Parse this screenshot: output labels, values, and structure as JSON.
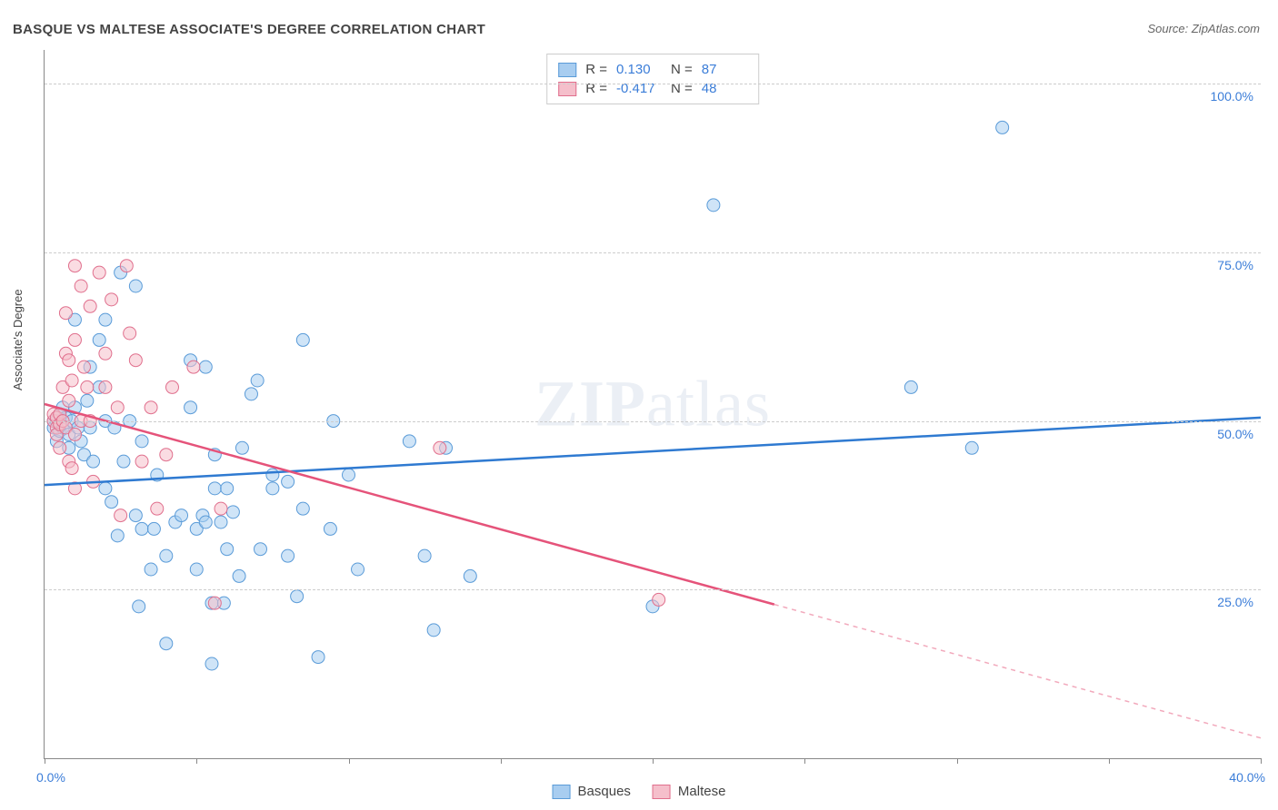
{
  "title": "BASQUE VS MALTESE ASSOCIATE'S DEGREE CORRELATION CHART",
  "source": "Source: ZipAtlas.com",
  "ylabel": "Associate's Degree",
  "watermark": {
    "bold": "ZIP",
    "rest": "atlas"
  },
  "chart": {
    "type": "scatter",
    "background_color": "#ffffff",
    "grid_color": "#cccccc",
    "grid_dash": "4,4",
    "axis_color": "#888888",
    "xlim": [
      0,
      40
    ],
    "ylim": [
      0,
      105
    ],
    "x_ticks": [
      0,
      5,
      10,
      15,
      20,
      25,
      30,
      35,
      40
    ],
    "x_tick_labels": {
      "0": "0.0%",
      "40": "40.0%"
    },
    "y_gridlines": [
      25,
      50,
      75,
      100
    ],
    "y_tick_labels": {
      "25": "25.0%",
      "50": "50.0%",
      "75": "75.0%",
      "100": "100.0%"
    },
    "tick_color": "#3b7dd8",
    "tick_fontsize": 14,
    "label_fontsize": 13,
    "point_radius": 7,
    "point_opacity": 0.55,
    "series": [
      {
        "name": "Basques",
        "fill_color": "#a8cdf0",
        "stroke_color": "#5a9bd8",
        "line_color": "#2f7ad1",
        "trend_start": [
          0,
          40.5
        ],
        "trend_end": [
          40,
          50.5
        ],
        "solid_extent": 40,
        "R": "0.130",
        "N": "87",
        "points": [
          [
            0.3,
            50
          ],
          [
            0.3,
            49
          ],
          [
            0.4,
            50
          ],
          [
            0.4,
            47
          ],
          [
            0.5,
            48.5
          ],
          [
            0.5,
            51
          ],
          [
            0.6,
            49
          ],
          [
            0.6,
            52
          ],
          [
            0.7,
            50.5
          ],
          [
            0.8,
            48
          ],
          [
            0.8,
            46
          ],
          [
            0.9,
            50
          ],
          [
            1.0,
            52
          ],
          [
            1.0,
            65
          ],
          [
            1.1,
            49
          ],
          [
            1.2,
            47
          ],
          [
            1.3,
            45
          ],
          [
            1.4,
            53
          ],
          [
            1.5,
            58
          ],
          [
            1.5,
            49
          ],
          [
            1.6,
            44
          ],
          [
            1.8,
            62
          ],
          [
            1.8,
            55
          ],
          [
            2.0,
            40
          ],
          [
            2.0,
            50
          ],
          [
            2.0,
            65
          ],
          [
            2.2,
            38
          ],
          [
            2.3,
            49
          ],
          [
            2.4,
            33
          ],
          [
            2.5,
            72
          ],
          [
            2.6,
            44
          ],
          [
            2.8,
            50
          ],
          [
            3.0,
            70
          ],
          [
            3.0,
            36
          ],
          [
            3.1,
            22.5
          ],
          [
            3.2,
            47
          ],
          [
            3.2,
            34
          ],
          [
            3.5,
            28
          ],
          [
            3.6,
            34
          ],
          [
            3.7,
            42
          ],
          [
            4.0,
            30
          ],
          [
            4.0,
            17
          ],
          [
            4.3,
            35
          ],
          [
            4.5,
            36
          ],
          [
            4.8,
            59
          ],
          [
            4.8,
            52
          ],
          [
            5.0,
            34
          ],
          [
            5.0,
            28
          ],
          [
            5.2,
            36
          ],
          [
            5.3,
            35
          ],
          [
            5.3,
            58
          ],
          [
            5.5,
            23
          ],
          [
            5.5,
            14
          ],
          [
            5.6,
            45
          ],
          [
            5.6,
            40
          ],
          [
            5.8,
            35
          ],
          [
            5.9,
            23
          ],
          [
            6.0,
            40
          ],
          [
            6.0,
            31
          ],
          [
            6.2,
            36.5
          ],
          [
            6.4,
            27
          ],
          [
            6.5,
            46
          ],
          [
            6.8,
            54
          ],
          [
            7.0,
            56
          ],
          [
            7.1,
            31
          ],
          [
            7.5,
            42
          ],
          [
            7.5,
            40
          ],
          [
            8.0,
            30
          ],
          [
            8.0,
            41
          ],
          [
            8.3,
            24
          ],
          [
            8.5,
            62
          ],
          [
            8.5,
            37
          ],
          [
            9.0,
            15
          ],
          [
            9.4,
            34
          ],
          [
            9.5,
            50
          ],
          [
            10.0,
            42
          ],
          [
            10.3,
            28
          ],
          [
            12.0,
            47
          ],
          [
            12.5,
            30
          ],
          [
            12.8,
            19
          ],
          [
            13.2,
            46
          ],
          [
            14.0,
            27
          ],
          [
            20.0,
            22.5
          ],
          [
            22.0,
            82
          ],
          [
            28.5,
            55
          ],
          [
            30.5,
            46
          ],
          [
            31.5,
            93.5
          ]
        ]
      },
      {
        "name": "Maltese",
        "fill_color": "#f5bfcb",
        "stroke_color": "#e06f8d",
        "line_color": "#e5537a",
        "trend_start": [
          0,
          52.5
        ],
        "trend_end": [
          40,
          3
        ],
        "solid_extent": 24,
        "R": "-0.417",
        "N": "48",
        "points": [
          [
            0.3,
            50
          ],
          [
            0.3,
            51
          ],
          [
            0.4,
            50.5
          ],
          [
            0.4,
            49
          ],
          [
            0.4,
            48
          ],
          [
            0.5,
            49.5
          ],
          [
            0.5,
            46
          ],
          [
            0.5,
            51
          ],
          [
            0.6,
            50
          ],
          [
            0.6,
            55
          ],
          [
            0.7,
            60
          ],
          [
            0.7,
            49
          ],
          [
            0.7,
            66
          ],
          [
            0.8,
            53
          ],
          [
            0.8,
            44
          ],
          [
            0.8,
            59
          ],
          [
            0.9,
            43
          ],
          [
            0.9,
            56
          ],
          [
            1.0,
            48
          ],
          [
            1.0,
            73
          ],
          [
            1.0,
            62
          ],
          [
            1.0,
            40
          ],
          [
            1.2,
            50
          ],
          [
            1.2,
            70
          ],
          [
            1.3,
            58
          ],
          [
            1.4,
            55
          ],
          [
            1.5,
            67
          ],
          [
            1.5,
            50
          ],
          [
            1.6,
            41
          ],
          [
            1.8,
            72
          ],
          [
            2.0,
            55
          ],
          [
            2.0,
            60
          ],
          [
            2.2,
            68
          ],
          [
            2.4,
            52
          ],
          [
            2.5,
            36
          ],
          [
            2.7,
            73
          ],
          [
            2.8,
            63
          ],
          [
            3.0,
            59
          ],
          [
            3.2,
            44
          ],
          [
            3.5,
            52
          ],
          [
            3.7,
            37
          ],
          [
            4.0,
            45
          ],
          [
            4.2,
            55
          ],
          [
            4.9,
            58
          ],
          [
            5.6,
            23
          ],
          [
            5.8,
            37
          ],
          [
            13.0,
            46
          ],
          [
            20.2,
            23.5
          ]
        ]
      }
    ]
  },
  "legend_top": {
    "rows": [
      {
        "swatch_fill": "#a8cdf0",
        "swatch_border": "#5a9bd8",
        "r_label": "R = ",
        "r_value": "0.130",
        "n_label": "N = ",
        "n_value": "87"
      },
      {
        "swatch_fill": "#f5bfcb",
        "swatch_border": "#e06f8d",
        "r_label": "R = ",
        "r_value": "-0.417",
        "n_label": "N = ",
        "n_value": "48"
      }
    ]
  },
  "legend_bottom": {
    "items": [
      {
        "swatch_fill": "#a8cdf0",
        "swatch_border": "#5a9bd8",
        "label": "Basques"
      },
      {
        "swatch_fill": "#f5bfcb",
        "swatch_border": "#e06f8d",
        "label": "Maltese"
      }
    ]
  }
}
